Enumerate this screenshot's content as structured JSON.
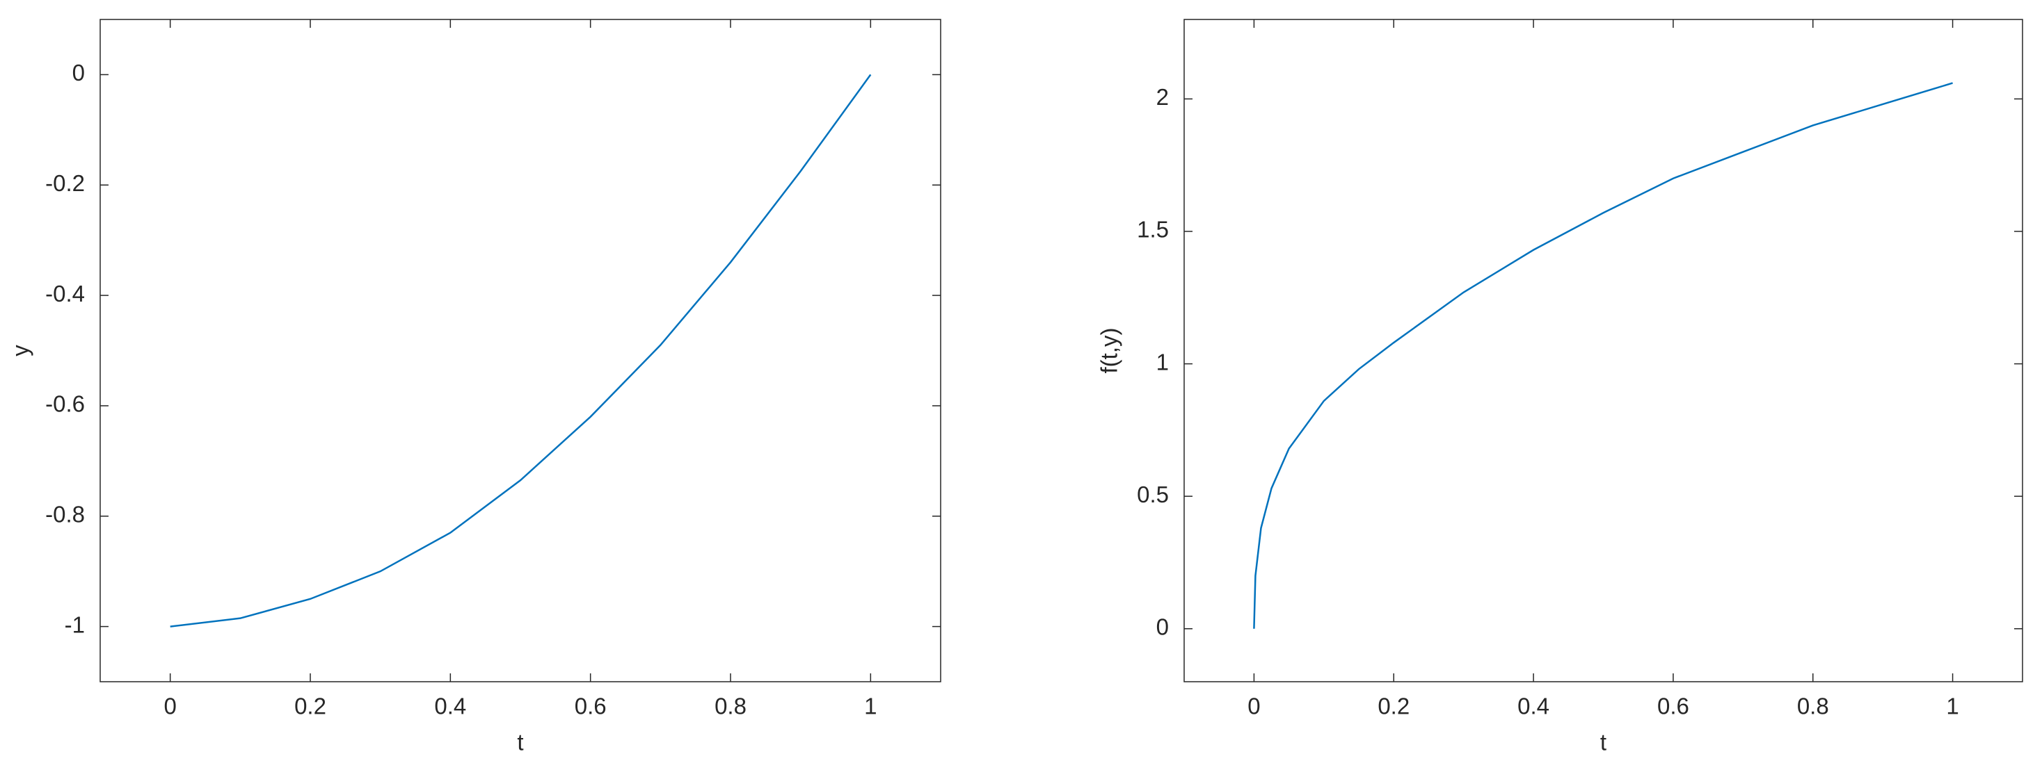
{
  "chart_data": [
    {
      "type": "line",
      "xlabel": "t",
      "ylabel": "y",
      "x": [
        0,
        0.1,
        0.2,
        0.3,
        0.4,
        0.5,
        0.6,
        0.7,
        0.8,
        0.9,
        1
      ],
      "series": [
        {
          "color": "#0072bd",
          "values": [
            -1,
            -0.985,
            -0.95,
            -0.9,
            -0.83,
            -0.735,
            -0.62,
            -0.49,
            -0.34,
            -0.175,
            0
          ]
        }
      ],
      "xlim": [
        -0.1,
        1.1
      ],
      "ylim": [
        -1.1,
        0.1
      ],
      "xticks": [
        0,
        0.2,
        0.4,
        0.6,
        0.8,
        1
      ],
      "yticks": [
        -1,
        -0.8,
        -0.6,
        -0.4,
        -0.2,
        0
      ]
    },
    {
      "type": "line",
      "xlabel": "t",
      "ylabel": "f(t,y)",
      "x": [
        0,
        0.002,
        0.01,
        0.025,
        0.05,
        0.1,
        0.15,
        0.2,
        0.3,
        0.4,
        0.5,
        0.6,
        0.7,
        0.8,
        0.9,
        1
      ],
      "series": [
        {
          "color": "#0072bd",
          "values": [
            0,
            0.2,
            0.38,
            0.53,
            0.68,
            0.86,
            0.98,
            1.08,
            1.27,
            1.43,
            1.57,
            1.7,
            1.8,
            1.9,
            1.98,
            2.06
          ]
        }
      ],
      "xlim": [
        -0.1,
        1.1
      ],
      "ylim": [
        -0.2,
        2.3
      ],
      "xticks": [
        0,
        0.2,
        0.4,
        0.6,
        0.8,
        1
      ],
      "yticks": [
        0,
        0.5,
        1,
        1.5,
        2
      ]
    }
  ]
}
